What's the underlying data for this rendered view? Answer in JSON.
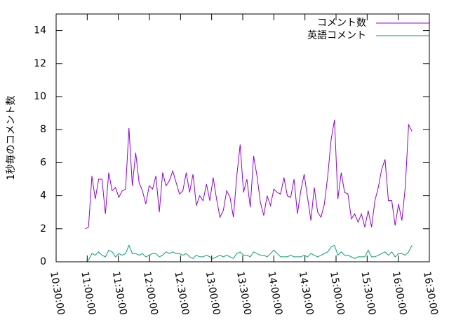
{
  "chart_data": {
    "type": "line",
    "y_label": "1秒毎のコメント数",
    "xlim": [
      630,
      990
    ],
    "xticks": [
      {
        "value": 630,
        "label": "10:30:00"
      },
      {
        "value": 660,
        "label": "11:00:00"
      },
      {
        "value": 690,
        "label": "11:30:00"
      },
      {
        "value": 720,
        "label": "12:00:00"
      },
      {
        "value": 750,
        "label": "12:30:00"
      },
      {
        "value": 780,
        "label": "13:00:00"
      },
      {
        "value": 810,
        "label": "13:30:00"
      },
      {
        "value": 840,
        "label": "14:00:00"
      },
      {
        "value": 870,
        "label": "14:30:00"
      },
      {
        "value": 900,
        "label": "15:00:00"
      },
      {
        "value": 930,
        "label": "15:30:00"
      },
      {
        "value": 960,
        "label": "16:00:00"
      },
      {
        "value": 990,
        "label": "16:30:00"
      }
    ],
    "ylim": [
      0,
      15
    ],
    "yticks": [
      0,
      2,
      4,
      6,
      8,
      10,
      12,
      14
    ],
    "legend": "top-right",
    "x": [
      658,
      661.25,
      664.5,
      667.75,
      671,
      674.25,
      677.5,
      680.75,
      684,
      687.25,
      690.5,
      693.75,
      697,
      700.25,
      703.5,
      706.75,
      710,
      713.25,
      716.5,
      719.75,
      723,
      726.25,
      729.5,
      732.75,
      736,
      739.25,
      742.5,
      745.75,
      749,
      752.25,
      755.5,
      758.75,
      762,
      765.25,
      768.5,
      771.75,
      775,
      778.25,
      781.5,
      784.75,
      788,
      791.25,
      794.5,
      797.75,
      801,
      804.25,
      807.5,
      810.75,
      814,
      817.25,
      820.5,
      823.75,
      827,
      830.25,
      833.5,
      836.75,
      840,
      843.25,
      846.5,
      849.75,
      853,
      856.25,
      859.5,
      862.75,
      866,
      869.25,
      872.5,
      875.75,
      879,
      882.25,
      885.5,
      888.75,
      892,
      895.25,
      898.5,
      901.75,
      905,
      908.25,
      911.5,
      914.75,
      918,
      921.25,
      924.5,
      927.75,
      931,
      934.25,
      937.5,
      940.75,
      944,
      947.25,
      950.5,
      953.75,
      957,
      960.25,
      963.5,
      966.75,
      970,
      973.25
    ],
    "series": [
      {
        "name": "コメント数",
        "color": "#9400d3",
        "values": [
          2.0,
          2.1,
          5.2,
          3.8,
          5.0,
          5.0,
          2.9,
          5.4,
          4.3,
          4.5,
          3.9,
          4.3,
          4.4,
          8.1,
          4.6,
          6.6,
          4.8,
          4.3,
          3.5,
          4.6,
          4.4,
          5.2,
          3.0,
          5.4,
          4.6,
          4.9,
          5.5,
          4.8,
          4.1,
          4.3,
          5.4,
          4.2,
          5.3,
          3.4,
          4.0,
          3.7,
          4.7,
          3.7,
          5.1,
          3.8,
          2.7,
          3.1,
          4.3,
          3.9,
          2.7,
          5.2,
          7.1,
          4.2,
          5.0,
          3.3,
          6.4,
          5.2,
          3.6,
          2.8,
          4.0,
          3.4,
          4.4,
          4.2,
          4.1,
          5.1,
          4.0,
          3.9,
          5.0,
          2.9,
          4.3,
          5.3,
          3.9,
          2.5,
          4.5,
          3.0,
          2.7,
          3.5,
          5.2,
          7.4,
          8.6,
          3.8,
          5.4,
          4.2,
          4.1,
          2.6,
          2.9,
          2.4,
          2.9,
          2.1,
          3.1,
          2.1,
          3.7,
          4.5,
          5.6,
          6.2,
          3.7,
          3.7,
          2.2,
          3.5,
          2.5,
          4.5,
          8.3,
          7.9
        ]
      },
      {
        "name": "英語コメント",
        "color": "#009e73",
        "values": [
          0.0,
          0.1,
          0.5,
          0.4,
          0.6,
          0.4,
          0.3,
          0.7,
          0.6,
          0.3,
          0.5,
          0.4,
          0.5,
          1.0,
          0.5,
          0.5,
          0.4,
          0.5,
          0.3,
          0.4,
          0.5,
          0.5,
          0.3,
          0.4,
          0.6,
          0.5,
          0.6,
          0.5,
          0.5,
          0.4,
          0.5,
          0.3,
          0.2,
          0.4,
          0.3,
          0.3,
          0.4,
          0.3,
          0.2,
          0.3,
          0.4,
          0.3,
          0.4,
          0.3,
          0.2,
          0.5,
          0.6,
          0.4,
          0.4,
          0.3,
          0.6,
          0.5,
          0.4,
          0.4,
          0.3,
          0.5,
          0.7,
          0.5,
          0.3,
          0.3,
          0.3,
          0.4,
          0.3,
          0.3,
          0.3,
          0.4,
          0.3,
          0.5,
          0.4,
          0.3,
          0.4,
          0.5,
          0.6,
          0.9,
          1.0,
          0.4,
          0.6,
          0.4,
          0.4,
          0.3,
          0.2,
          0.3,
          0.3,
          0.3,
          0.7,
          0.3,
          0.3,
          0.4,
          0.5,
          0.6,
          0.4,
          0.6,
          0.3,
          0.5,
          0.5,
          0.4,
          0.6,
          1.0
        ]
      }
    ]
  }
}
